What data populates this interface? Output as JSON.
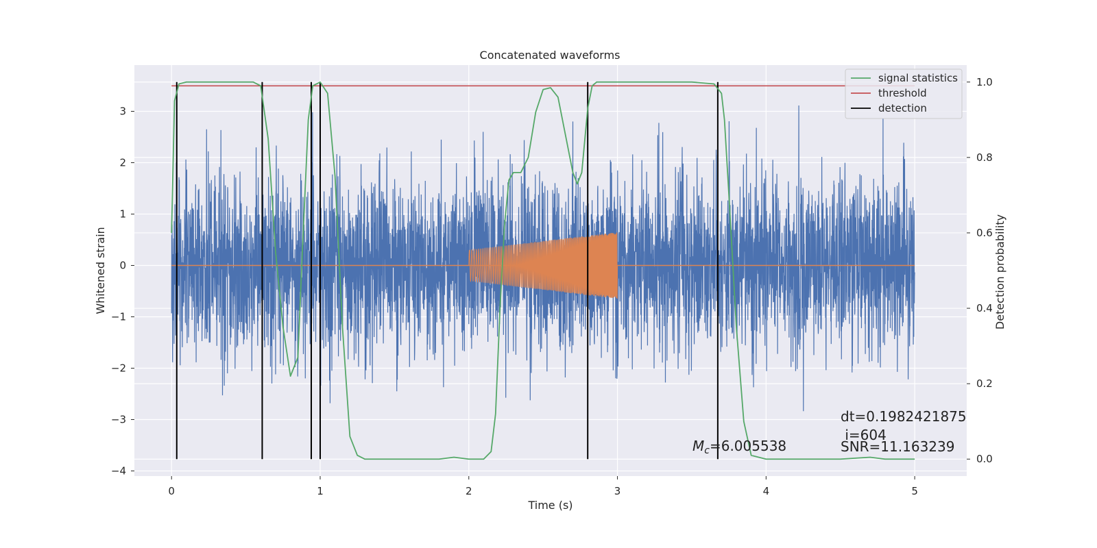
{
  "chart_data": {
    "type": "line",
    "title": "Concatenated waveforms",
    "xlabel": "Time (s)",
    "ylabel_left": "Whitened strain",
    "ylabel_right": "Detection probability",
    "xlim": [
      -0.25,
      5.35
    ],
    "ylim_left": [
      -4.1,
      3.9
    ],
    "ylim_right": [
      -0.045,
      1.045
    ],
    "x_ticks": [
      0,
      1,
      2,
      3,
      4,
      5
    ],
    "x_tick_labels": [
      "0",
      "1",
      "2",
      "3",
      "4",
      "5"
    ],
    "y_ticks_left": [
      -4,
      -3,
      -2,
      -1,
      0,
      1,
      2,
      3
    ],
    "y_tick_labels_left": [
      "−4",
      "−3",
      "−2",
      "−1",
      "0",
      "1",
      "2",
      "3"
    ],
    "y_ticks_right": [
      0.0,
      0.2,
      0.4,
      0.6,
      0.8,
      1.0
    ],
    "y_tick_labels_right": [
      "0.0",
      "0.2",
      "0.4",
      "0.6",
      "0.8",
      "1.0"
    ],
    "grid": true,
    "legend_placement": "top-right",
    "colors": {
      "background": "#eaeaf2",
      "grid": "#ffffff",
      "strain": "#4c72b0",
      "template": "#dd8452",
      "signal_statistics": "#55a868",
      "threshold": "#c44e52",
      "detection": "#000000"
    },
    "series": [
      {
        "name": "",
        "axis": "left",
        "role": "whitened strain noise",
        "x_range": [
          0,
          5
        ],
        "amplitude_rms": 0.85,
        "max_abs": 3.6
      },
      {
        "name": "",
        "axis": "left",
        "role": "injected chirp",
        "x_range": [
          2,
          3
        ],
        "amplitude_start": 0.3,
        "amplitude_end": 0.65
      },
      {
        "name": "signal statistics",
        "axis": "right",
        "x": [
          0.0,
          0.02,
          0.05,
          0.1,
          0.3,
          0.55,
          0.6,
          0.65,
          0.7,
          0.75,
          0.8,
          0.85,
          0.88,
          0.92,
          0.95,
          1.0,
          1.05,
          1.1,
          1.15,
          1.2,
          1.25,
          1.3,
          1.5,
          1.8,
          1.9,
          2.0,
          2.1,
          2.15,
          2.18,
          2.21,
          2.24,
          2.27,
          2.3,
          2.35,
          2.4,
          2.45,
          2.5,
          2.55,
          2.6,
          2.65,
          2.7,
          2.73,
          2.76,
          2.8,
          2.83,
          2.86,
          2.9,
          3.0,
          3.5,
          3.65,
          3.7,
          3.72,
          3.75,
          3.8,
          3.85,
          3.9,
          4.0,
          4.5,
          4.7,
          4.8,
          5.0
        ],
        "values": [
          0.6,
          0.95,
          0.995,
          1.0,
          1.0,
          1.0,
          0.99,
          0.85,
          0.55,
          0.35,
          0.22,
          0.27,
          0.55,
          0.9,
          0.99,
          1.0,
          0.97,
          0.75,
          0.35,
          0.06,
          0.01,
          0.0,
          0.0,
          0.0,
          0.005,
          0.0,
          0.0,
          0.02,
          0.12,
          0.4,
          0.62,
          0.74,
          0.76,
          0.76,
          0.8,
          0.92,
          0.98,
          0.985,
          0.96,
          0.86,
          0.76,
          0.73,
          0.76,
          0.93,
          0.99,
          1.0,
          1.0,
          1.0,
          1.0,
          0.995,
          0.97,
          0.9,
          0.7,
          0.35,
          0.1,
          0.01,
          0.0,
          0.0,
          0.005,
          0.0,
          0.0
        ]
      },
      {
        "name": "threshold",
        "axis": "right",
        "x": [
          0,
          5
        ],
        "values": [
          0.99,
          0.99
        ]
      }
    ],
    "detections": {
      "name": "detection",
      "x": [
        0.035,
        0.61,
        0.94,
        1.0,
        2.8,
        3.675
      ],
      "y_range_right": [
        0.0,
        1.0
      ]
    },
    "annotations": {
      "mc_label": "M",
      "mc_sub": "c",
      "mc_value": "=6.005538",
      "dt": "dt=0.1982421875",
      "i": " i=604",
      "snr": "SNR=11.163239"
    }
  }
}
